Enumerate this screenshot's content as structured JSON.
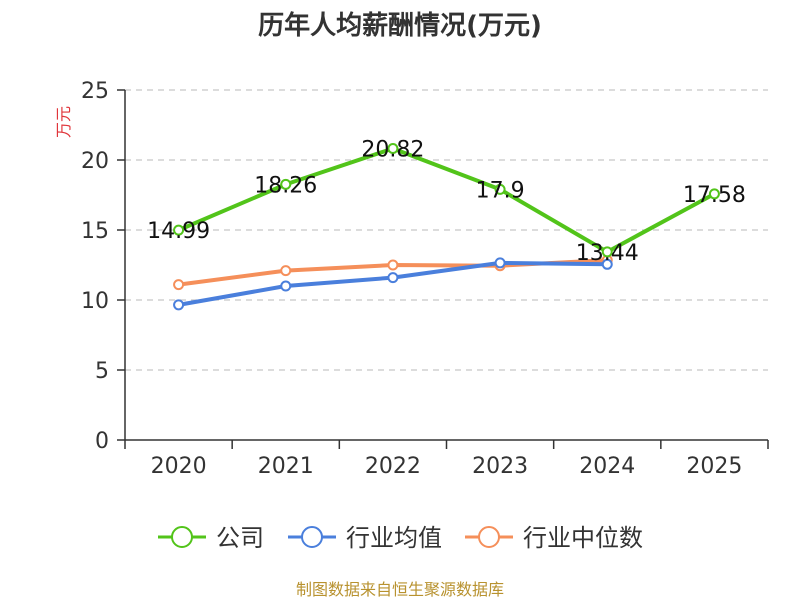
{
  "chart_data": {
    "type": "line",
    "title": "历年人均薪酬情况(万元)",
    "ylabel": "万元",
    "xlabel": "",
    "ylim": [
      0,
      25
    ],
    "yticks": [
      0,
      5,
      10,
      15,
      20,
      25
    ],
    "categories": [
      "2020",
      "2021",
      "2022",
      "2023",
      "2024",
      "2025"
    ],
    "grid": true,
    "legend_position": "bottom",
    "series": [
      {
        "name": "公司",
        "color": "#52c41a",
        "values": [
          14.99,
          18.26,
          20.82,
          17.9,
          13.44,
          17.58
        ],
        "labels": [
          "14.99",
          "18.26",
          "20.82",
          "17.9",
          "13.44",
          "17.58"
        ]
      },
      {
        "name": "行业均值",
        "color": "#4a7fdc",
        "values": [
          9.65,
          11.0,
          11.6,
          12.65,
          12.55,
          null
        ]
      },
      {
        "name": "行业中位数",
        "color": "#f58f5a",
        "values": [
          11.1,
          12.1,
          12.5,
          12.45,
          12.85,
          null
        ]
      }
    ]
  },
  "footer": {
    "source": "制图数据来自恒生聚源数据库"
  }
}
